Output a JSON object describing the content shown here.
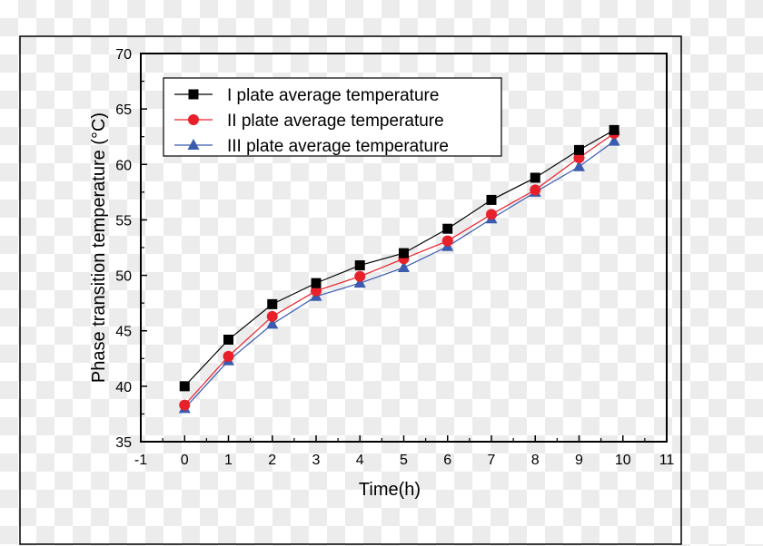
{
  "chart_data": {
    "type": "line",
    "xlabel": "Time(h)",
    "ylabel": "Phase transition temperature (°C)",
    "xlim": [
      -1,
      11
    ],
    "ylim": [
      35,
      70
    ],
    "xticks": [
      "-1",
      "0",
      "1",
      "2",
      "3",
      "4",
      "5",
      "6",
      "7",
      "8",
      "9",
      "10",
      "11"
    ],
    "yticks": [
      "35",
      "40",
      "45",
      "50",
      "55",
      "60",
      "65",
      "70"
    ],
    "grid": false,
    "legend_position": "top-left",
    "x": [
      0,
      1,
      2,
      3,
      4,
      5,
      6,
      7,
      8,
      9,
      9.8
    ],
    "series": [
      {
        "name": "I plate average temperature",
        "color": "#000000",
        "marker": "square",
        "values": [
          40.0,
          44.2,
          47.4,
          49.3,
          50.9,
          52.0,
          54.2,
          56.8,
          58.8,
          61.3,
          63.1
        ]
      },
      {
        "name": "II plate average temperature",
        "color": "#e8202a",
        "marker": "circle",
        "values": [
          38.3,
          42.7,
          46.3,
          48.6,
          49.9,
          51.5,
          53.1,
          55.5,
          57.7,
          60.6,
          62.8
        ]
      },
      {
        "name": "III plate average temperature",
        "color": "#3a5bb0",
        "marker": "triangle",
        "values": [
          38.0,
          42.3,
          45.6,
          48.1,
          49.3,
          50.7,
          52.6,
          55.1,
          57.5,
          59.8,
          62.1
        ]
      }
    ]
  }
}
